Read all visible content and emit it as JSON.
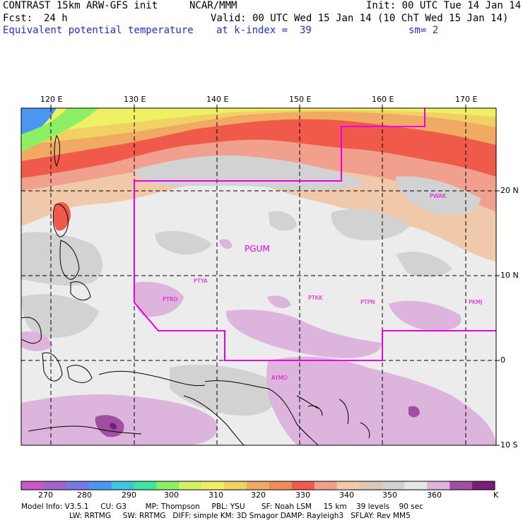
{
  "header": {
    "model": "CONTRAST 15km ARW-GFS init",
    "org": "NCAR/MMM",
    "init": "Init: 00 UTC Tue 14 Jan 14",
    "fcst_label": "Fcst:",
    "fcst_value": "24 h",
    "valid": "Valid: 00 UTC Wed 15 Jan 14 (10 ChT Wed 15 Jan 14)",
    "field": "Equivalent potential temperature",
    "level": "at k-index =  39",
    "smooth": "sm= 2"
  },
  "map": {
    "lon_labels": [
      "120 E",
      "130 E",
      "140 E",
      "150 E",
      "160 E",
      "170 E"
    ],
    "lat_labels": [
      "20 N",
      "10 N",
      "0",
      "10 S"
    ],
    "stations": [
      "PGUM",
      "PTYA",
      "PTRO",
      "PTKK",
      "PTPN",
      "PKMJ",
      "PWAK",
      "AYMO"
    ]
  },
  "colorbar": {
    "ticks": [
      "270",
      "280",
      "290",
      "300",
      "310",
      "320",
      "330",
      "340",
      "350",
      "360"
    ],
    "unit": "K",
    "colors": [
      "#c85ac8",
      "#a064c8",
      "#7878e6",
      "#4b96f0",
      "#3cc8dc",
      "#3ce6a0",
      "#8cf064",
      "#d2f064",
      "#f0f064",
      "#f0d264",
      "#f0aa64",
      "#f08c5a",
      "#f05a4b",
      "#f0a08c",
      "#f0c8aa",
      "#dcc8b4",
      "#d2d2d2",
      "#e6e6e6",
      "#dcb4dc",
      "#a050a0",
      "#781e78"
    ]
  },
  "info": {
    "line1": "Model Info: V3.5.1     CU: G3        MP: Thompson     PBL: YSU       SF: Noah LSM     15 km    39 levels    90 sec",
    "line2": "LW: RRTMG     SW: RRTMG   DIFF: simple KM: 3D Smagor DAMP: Rayleigh3   SFLAY: Rev MM5"
  }
}
